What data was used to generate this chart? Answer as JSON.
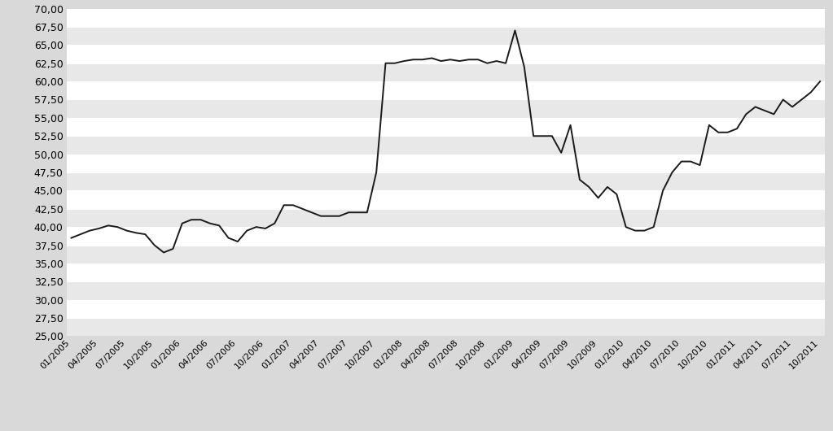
{
  "values_by_month": {
    "2005-01": 38.5,
    "2005-02": 39.0,
    "2005-03": 39.5,
    "2005-04": 39.8,
    "2005-05": 40.2,
    "2005-06": 40.0,
    "2005-07": 39.5,
    "2005-08": 39.2,
    "2005-09": 39.0,
    "2005-10": 37.5,
    "2005-11": 36.5,
    "2005-12": 37.0,
    "2006-01": 40.5,
    "2006-02": 41.0,
    "2006-03": 41.0,
    "2006-04": 40.5,
    "2006-05": 40.2,
    "2006-06": 38.5,
    "2006-07": 38.0,
    "2006-08": 39.5,
    "2006-09": 40.0,
    "2006-10": 39.8,
    "2006-11": 40.5,
    "2006-12": 43.0,
    "2007-01": 43.0,
    "2007-02": 42.5,
    "2007-03": 42.0,
    "2007-04": 41.5,
    "2007-05": 41.5,
    "2007-06": 41.5,
    "2007-07": 42.0,
    "2007-08": 42.0,
    "2007-09": 42.0,
    "2007-10": 47.5,
    "2007-11": 62.5,
    "2007-12": 62.5,
    "2008-01": 62.8,
    "2008-02": 63.0,
    "2008-03": 63.0,
    "2008-04": 63.2,
    "2008-05": 62.8,
    "2008-06": 63.0,
    "2008-07": 62.8,
    "2008-08": 63.0,
    "2008-09": 63.0,
    "2008-10": 62.5,
    "2008-11": 62.8,
    "2008-12": 62.5,
    "2009-01": 67.0,
    "2009-02": 62.0,
    "2009-03": 52.5,
    "2009-04": 52.5,
    "2009-05": 52.5,
    "2009-06": 50.2,
    "2009-07": 54.0,
    "2009-08": 46.5,
    "2009-09": 45.5,
    "2009-10": 44.0,
    "2009-11": 45.5,
    "2009-12": 44.5,
    "2010-01": 40.0,
    "2010-02": 39.5,
    "2010-03": 39.5,
    "2010-04": 40.0,
    "2010-05": 45.0,
    "2010-06": 47.5,
    "2010-07": 49.0,
    "2010-08": 49.0,
    "2010-09": 48.5,
    "2010-10": 54.0,
    "2010-11": 53.0,
    "2010-12": 53.0,
    "2011-01": 53.5,
    "2011-02": 55.5,
    "2011-03": 56.5,
    "2011-04": 56.0,
    "2011-05": 55.5,
    "2011-06": 57.5,
    "2011-07": 56.5,
    "2011-08": 57.5,
    "2011-09": 58.5,
    "2011-10": 60.0
  },
  "ylim": [
    25.0,
    70.0
  ],
  "yticks": [
    25.0,
    27.5,
    30.0,
    32.5,
    35.0,
    37.5,
    40.0,
    42.5,
    45.0,
    47.5,
    50.0,
    52.5,
    55.0,
    57.5,
    60.0,
    62.5,
    65.0,
    67.5,
    70.0
  ],
  "xtick_labels": [
    "01/2005",
    "04/2005",
    "07/2005",
    "10/2005",
    "01/2006",
    "04/2006",
    "07/2006",
    "10/2006",
    "01/2007",
    "04/2007",
    "07/2007",
    "10/2007",
    "01/2008",
    "04/2008",
    "07/2008",
    "10/2008",
    "01/2009",
    "04/2009",
    "07/2009",
    "10/2009",
    "01/2010",
    "04/2010",
    "07/2010",
    "10/2010",
    "01/2011",
    "04/2011",
    "07/2011",
    "10/2011"
  ],
  "line_color": "#1a1a1a",
  "line_width": 1.4,
  "bg_color": "#d9d9d9",
  "plot_bg_color": "#f2f2f2",
  "grid_color": "#ffffff",
  "stripe_color": "#e8e8e8",
  "font_size_yticks": 9,
  "font_size_xticks": 8
}
